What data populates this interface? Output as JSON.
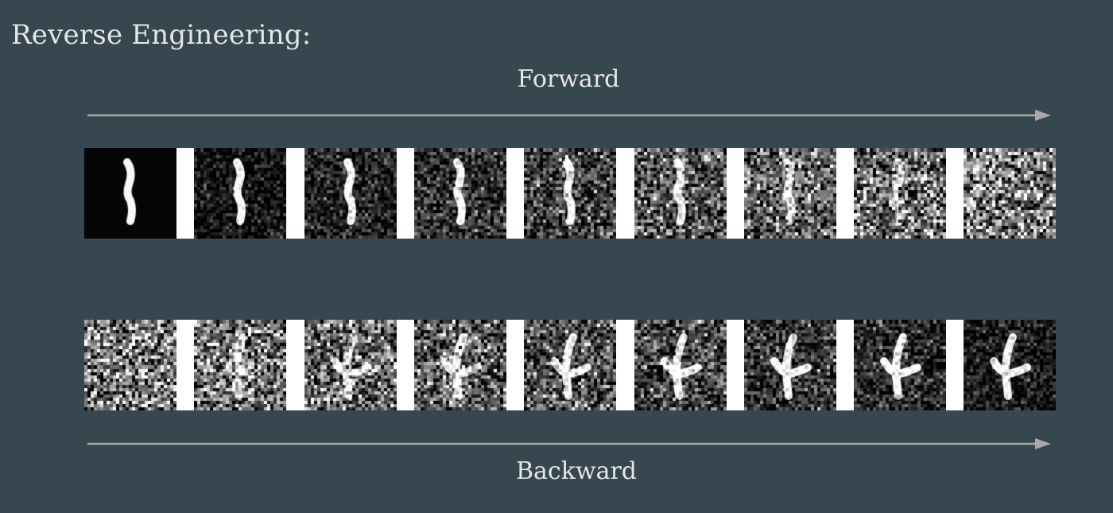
{
  "title": "Reverse Engineering:",
  "forward": {
    "label": "Forward",
    "digit": "1",
    "noise_levels": [
      0.0,
      0.12,
      0.25,
      0.38,
      0.5,
      0.62,
      0.74,
      0.86,
      1.0
    ]
  },
  "backward": {
    "label": "Backward",
    "digit": "4",
    "noise_levels": [
      1.0,
      0.92,
      0.84,
      0.76,
      0.62,
      0.54,
      0.42,
      0.32,
      0.16
    ]
  },
  "colors": {
    "background": "#36474f",
    "text": "#e6e6e6",
    "arrow": "#a8a8a8",
    "separator": "#ffffff"
  }
}
